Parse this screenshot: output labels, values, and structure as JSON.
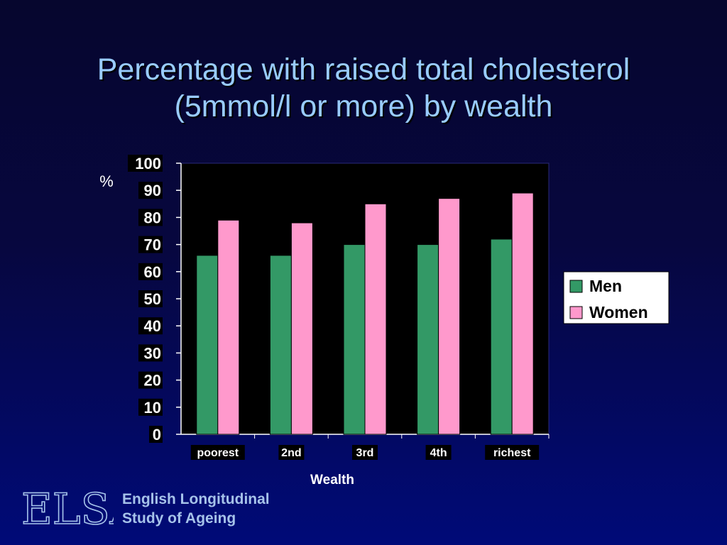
{
  "slide": {
    "title_line1": "Percentage with raised total cholesterol",
    "title_line2": "(5mmol/l or more) by wealth"
  },
  "colors": {
    "background_top": "#06062e",
    "background_bottom": "#000a78",
    "title": "#99ccff",
    "men": "#339966",
    "women": "#ff99cc",
    "logo": "#a6c3ea"
  },
  "chart_data": {
    "type": "bar",
    "title": "Percentage with raised total cholesterol (5mmol/l or more) by wealth",
    "xlabel": "Wealth",
    "ylabel": "%",
    "categories": [
      "poorest",
      "2nd",
      "3rd",
      "4th",
      "richest"
    ],
    "series": [
      {
        "name": "Men",
        "color": "#339966",
        "values": [
          66,
          66,
          70,
          70,
          72
        ]
      },
      {
        "name": "Women",
        "color": "#ff99cc",
        "values": [
          79,
          78,
          85,
          87,
          89
        ]
      }
    ],
    "ylim": [
      0,
      100
    ],
    "yticks": [
      0,
      10,
      20,
      30,
      40,
      50,
      60,
      70,
      80,
      90,
      100
    ],
    "grid": false,
    "legend_position": "right"
  },
  "branding": {
    "logo_name": "ELSA",
    "line1": "English Longitudinal",
    "line2": "Study of Ageing"
  }
}
